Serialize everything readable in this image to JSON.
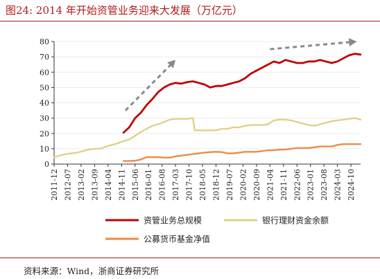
{
  "title": "图24:  2014 年开始资管业务迎来大发展（万亿元）",
  "source": "资料来源：Wind，浙商证券研究所",
  "chart_data": {
    "type": "line",
    "ylim": [
      0,
      80
    ],
    "yticks": [
      0,
      10,
      20,
      30,
      40,
      50,
      60,
      70,
      80
    ],
    "xlim": [
      "2011-12",
      "2025-03"
    ],
    "xticks": [
      "2011-12",
      "2012-07",
      "2013-02",
      "2013-09",
      "2014-04",
      "2014-11",
      "2015-06",
      "2016-01",
      "2016-08",
      "2017-03",
      "2017-10",
      "2018-05",
      "2018-12",
      "2019-07",
      "2020-02",
      "2020-09",
      "2021-04",
      "2021-11",
      "2022-06",
      "2023-01",
      "2023-08",
      "2024-03",
      "2024-10"
    ],
    "legend": [
      "资管业务总规模",
      "银行理财资金余额",
      "公募货币基金净值"
    ],
    "colors": {
      "资管业务总规模": "#c00000",
      "银行理财资金余额": "#e3cf8b",
      "公募货币基金净值": "#ed8a4a",
      "trend_arrow": "#888888"
    },
    "trend_arrows": [
      {
        "from": [
          "2015-01",
          35
        ],
        "to": [
          "2017-03",
          68
        ]
      },
      {
        "from": [
          "2021-04",
          75
        ],
        "to": [
          "2025-01",
          80
        ]
      }
    ],
    "series": [
      {
        "name": "资管业务总规模",
        "x": [
          "2014-12",
          "2015-03",
          "2015-06",
          "2015-09",
          "2015-12",
          "2016-03",
          "2016-06",
          "2016-09",
          "2016-12",
          "2017-03",
          "2017-06",
          "2017-09",
          "2017-12",
          "2018-03",
          "2018-06",
          "2018-09",
          "2018-12",
          "2019-03",
          "2019-06",
          "2019-09",
          "2019-12",
          "2020-03",
          "2020-06",
          "2020-09",
          "2020-12",
          "2021-03",
          "2021-06",
          "2021-09",
          "2021-12",
          "2022-03",
          "2022-06",
          "2022-09",
          "2022-12",
          "2023-03",
          "2023-06",
          "2023-09",
          "2023-12",
          "2024-03",
          "2024-06",
          "2024-09",
          "2024-12",
          "2025-03"
        ],
        "values": [
          20.5,
          24,
          30,
          33.5,
          38.5,
          42.5,
          47,
          50,
          52,
          53,
          52.5,
          53.5,
          54,
          53,
          52,
          50,
          51,
          51,
          52,
          53,
          54,
          56,
          59,
          61,
          63,
          65,
          67,
          66,
          68,
          67,
          66,
          66,
          67,
          67,
          68,
          67,
          66,
          67,
          69,
          71,
          72,
          71.5
        ]
      },
      {
        "name": "银行理财资金余额",
        "x": [
          "2011-12",
          "2012-03",
          "2012-06",
          "2012-09",
          "2012-12",
          "2013-03",
          "2013-06",
          "2013-09",
          "2013-12",
          "2014-03",
          "2014-06",
          "2014-09",
          "2014-12",
          "2015-03",
          "2015-06",
          "2015-09",
          "2015-12",
          "2016-03",
          "2016-06",
          "2016-09",
          "2016-12",
          "2017-03",
          "2017-06",
          "2017-09",
          "2017-12",
          "2018-01",
          "2018-03",
          "2018-06",
          "2018-09",
          "2018-12",
          "2019-03",
          "2019-06",
          "2019-09",
          "2019-12",
          "2020-03",
          "2020-06",
          "2020-09",
          "2020-12",
          "2021-03",
          "2021-06",
          "2021-09",
          "2021-12",
          "2022-03",
          "2022-06",
          "2022-09",
          "2022-12",
          "2023-03",
          "2023-06",
          "2023-09",
          "2023-12",
          "2024-03",
          "2024-06",
          "2024-09",
          "2024-12",
          "2025-03"
        ],
        "values": [
          4.5,
          5.5,
          6.5,
          7,
          7.5,
          8.5,
          9.5,
          10,
          10,
          11.5,
          12.5,
          13.5,
          15,
          16,
          18.5,
          21,
          23,
          25,
          26,
          27.5,
          29,
          29.5,
          29.5,
          29.5,
          30,
          22,
          22,
          22,
          22,
          22,
          23,
          23,
          24,
          24,
          25,
          25.5,
          25.5,
          25.5,
          26,
          28.5,
          29,
          29,
          28.5,
          27.5,
          26.5,
          25.5,
          25,
          26,
          27,
          28,
          28.5,
          29,
          29.5,
          30,
          29
        ]
      },
      {
        "name": "公募货币基金净值",
        "x": [
          "2014-12",
          "2015-03",
          "2015-06",
          "2015-09",
          "2015-12",
          "2016-03",
          "2016-06",
          "2016-09",
          "2016-12",
          "2017-03",
          "2017-06",
          "2017-09",
          "2017-12",
          "2018-03",
          "2018-06",
          "2018-09",
          "2018-12",
          "2019-03",
          "2019-06",
          "2019-09",
          "2019-12",
          "2020-03",
          "2020-06",
          "2020-09",
          "2020-12",
          "2021-03",
          "2021-06",
          "2021-09",
          "2021-12",
          "2022-03",
          "2022-06",
          "2022-09",
          "2022-12",
          "2023-03",
          "2023-06",
          "2023-09",
          "2023-12",
          "2024-03",
          "2024-06",
          "2024-09",
          "2024-12",
          "2025-03"
        ],
        "values": [
          2,
          2,
          2.2,
          3,
          4.5,
          4.5,
          4.5,
          4.2,
          4.2,
          5,
          5.5,
          6,
          6.5,
          7,
          7.5,
          7.8,
          8,
          7.8,
          7,
          7,
          7.5,
          8,
          8,
          8,
          8.5,
          9,
          9,
          9.5,
          9.5,
          10,
          10.5,
          10.5,
          10.5,
          11,
          11.5,
          11.5,
          11.5,
          12.5,
          13,
          13,
          13,
          13
        ]
      }
    ]
  }
}
